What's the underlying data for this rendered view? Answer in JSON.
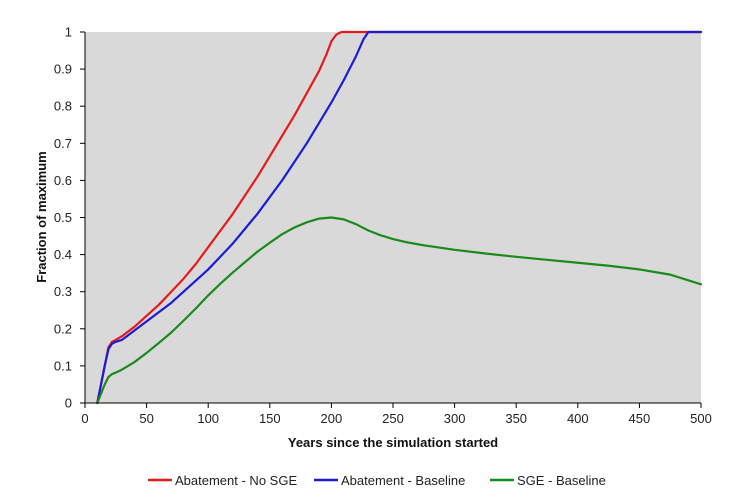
{
  "chart_data": {
    "type": "line",
    "title": "",
    "xlabel": "Years since the simulation started",
    "ylabel": "Fraction of maximum",
    "xlim": [
      0,
      500
    ],
    "ylim": [
      0,
      1
    ],
    "x_ticks": [
      0,
      50,
      100,
      150,
      200,
      250,
      300,
      350,
      400,
      450,
      500
    ],
    "y_ticks": [
      0,
      0.1,
      0.2,
      0.3,
      0.4,
      0.5,
      0.6,
      0.7,
      0.8,
      0.9,
      1
    ],
    "x_tick_labels": [
      "0",
      "50",
      "100",
      "150",
      "200",
      "250",
      "300",
      "350",
      "400",
      "450",
      "500"
    ],
    "y_tick_labels": [
      "0",
      "0.1",
      "0.2",
      "0.3",
      "0.4",
      "0.5",
      "0.6",
      "0.7",
      "0.8",
      "0.9",
      "1"
    ],
    "grid": false,
    "plot_background": "#d9d9d9",
    "legend_position": "bottom",
    "series": [
      {
        "name": "Abatement - No SGE",
        "color": "#e41a1c",
        "points": [
          [
            10,
            0
          ],
          [
            13,
            0.05
          ],
          [
            16,
            0.1
          ],
          [
            19,
            0.15
          ],
          [
            22,
            0.165
          ],
          [
            25,
            0.17
          ],
          [
            30,
            0.18
          ],
          [
            40,
            0.205
          ],
          [
            50,
            0.235
          ],
          [
            60,
            0.265
          ],
          [
            70,
            0.3
          ],
          [
            80,
            0.335
          ],
          [
            90,
            0.375
          ],
          [
            100,
            0.42
          ],
          [
            110,
            0.465
          ],
          [
            120,
            0.51
          ],
          [
            130,
            0.56
          ],
          [
            140,
            0.61
          ],
          [
            150,
            0.665
          ],
          [
            160,
            0.72
          ],
          [
            170,
            0.775
          ],
          [
            180,
            0.835
          ],
          [
            190,
            0.895
          ],
          [
            196,
            0.94
          ],
          [
            200,
            0.975
          ],
          [
            204,
            0.993
          ],
          [
            208,
            1.0
          ],
          [
            500,
            1.0
          ]
        ]
      },
      {
        "name": "Abatement - Baseline",
        "color": "#1c1cd6",
        "points": [
          [
            10,
            0
          ],
          [
            13,
            0.05
          ],
          [
            16,
            0.1
          ],
          [
            19,
            0.145
          ],
          [
            22,
            0.16
          ],
          [
            25,
            0.165
          ],
          [
            30,
            0.17
          ],
          [
            40,
            0.195
          ],
          [
            50,
            0.22
          ],
          [
            60,
            0.245
          ],
          [
            70,
            0.27
          ],
          [
            80,
            0.3
          ],
          [
            90,
            0.33
          ],
          [
            100,
            0.36
          ],
          [
            110,
            0.395
          ],
          [
            120,
            0.43
          ],
          [
            130,
            0.47
          ],
          [
            140,
            0.51
          ],
          [
            150,
            0.555
          ],
          [
            160,
            0.6
          ],
          [
            170,
            0.65
          ],
          [
            180,
            0.7
          ],
          [
            190,
            0.755
          ],
          [
            200,
            0.81
          ],
          [
            210,
            0.87
          ],
          [
            220,
            0.935
          ],
          [
            226,
            0.98
          ],
          [
            230,
            1.0
          ],
          [
            500,
            1.0
          ]
        ]
      },
      {
        "name": "SGE - Baseline",
        "color": "#1a8a1a",
        "points": [
          [
            10,
            0
          ],
          [
            13,
            0.025
          ],
          [
            16,
            0.05
          ],
          [
            19,
            0.07
          ],
          [
            22,
            0.078
          ],
          [
            25,
            0.082
          ],
          [
            30,
            0.09
          ],
          [
            40,
            0.11
          ],
          [
            50,
            0.135
          ],
          [
            60,
            0.162
          ],
          [
            70,
            0.19
          ],
          [
            80,
            0.222
          ],
          [
            90,
            0.255
          ],
          [
            100,
            0.29
          ],
          [
            110,
            0.322
          ],
          [
            120,
            0.352
          ],
          [
            130,
            0.38
          ],
          [
            140,
            0.408
          ],
          [
            150,
            0.432
          ],
          [
            160,
            0.455
          ],
          [
            170,
            0.473
          ],
          [
            180,
            0.487
          ],
          [
            190,
            0.497
          ],
          [
            200,
            0.5
          ],
          [
            210,
            0.495
          ],
          [
            220,
            0.482
          ],
          [
            230,
            0.465
          ],
          [
            240,
            0.452
          ],
          [
            250,
            0.442
          ],
          [
            260,
            0.434
          ],
          [
            275,
            0.425
          ],
          [
            300,
            0.413
          ],
          [
            325,
            0.403
          ],
          [
            350,
            0.394
          ],
          [
            375,
            0.386
          ],
          [
            400,
            0.378
          ],
          [
            425,
            0.37
          ],
          [
            450,
            0.36
          ],
          [
            475,
            0.346
          ],
          [
            500,
            0.32
          ]
        ]
      }
    ]
  }
}
